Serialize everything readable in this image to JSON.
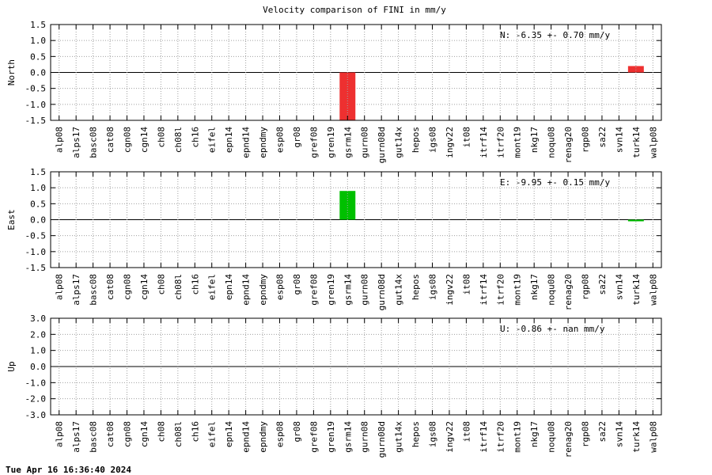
{
  "title": "Velocity comparison of FINI in mm/y",
  "footer": "Tue Apr 16 16:36:40 2024",
  "chart_data": [
    {
      "type": "bar",
      "ylabel": "North",
      "annotation": "N:  -6.35 +-  0.70 mm/y",
      "color": "#ee3030",
      "categories": [
        "alp08",
        "alps17",
        "basc08",
        "cat08",
        "cgn08",
        "cgn14",
        "ch08",
        "ch08l",
        "ch16",
        "eifel",
        "epn14",
        "epnd14",
        "epndmy",
        "esp08",
        "gr08",
        "gref08",
        "gren19",
        "gsrm14",
        "gurn08",
        "gurn08d",
        "gut14x",
        "hepos",
        "igs08",
        "ingv22",
        "it08",
        "itrf14",
        "itrf20",
        "mont19",
        "nkg17",
        "noqu08",
        "renag20",
        "rgp08",
        "sa22",
        "svn14",
        "turk14",
        "walp08"
      ],
      "values": [
        null,
        null,
        null,
        null,
        null,
        null,
        null,
        null,
        null,
        null,
        null,
        null,
        null,
        null,
        null,
        null,
        null,
        -1.6,
        null,
        null,
        null,
        null,
        null,
        null,
        null,
        null,
        null,
        null,
        null,
        null,
        null,
        null,
        null,
        null,
        0.2,
        null
      ],
      "ylim": [
        -1.5,
        1.5
      ],
      "yticks": [
        -1.5,
        {
          "value": -1,
          "label": "-1.0"
        },
        -0.5,
        {
          "value": 0,
          "label": "0.0"
        },
        0.5,
        {
          "value": 1,
          "label": "1.0"
        },
        1.5
      ],
      "grid": true
    },
    {
      "type": "bar",
      "ylabel": "East",
      "annotation": "E:  -9.95 +-  0.15 mm/y",
      "color": "#00c000",
      "categories": [
        "alp08",
        "alps17",
        "basc08",
        "cat08",
        "cgn08",
        "cgn14",
        "ch08",
        "ch08l",
        "ch16",
        "eifel",
        "epn14",
        "epnd14",
        "epndmy",
        "esp08",
        "gr08",
        "gref08",
        "gren19",
        "gsrm14",
        "gurn08",
        "gurn08d",
        "gut14x",
        "hepos",
        "igs08",
        "ingv22",
        "it08",
        "itrf14",
        "itrf20",
        "mont19",
        "nkg17",
        "noqu08",
        "renag20",
        "rgp08",
        "sa22",
        "svn14",
        "turk14",
        "walp08"
      ],
      "values": [
        null,
        null,
        null,
        null,
        null,
        null,
        null,
        null,
        null,
        null,
        null,
        null,
        null,
        null,
        null,
        null,
        null,
        0.9,
        null,
        null,
        null,
        null,
        null,
        null,
        null,
        null,
        null,
        null,
        null,
        null,
        null,
        null,
        null,
        null,
        -0.05,
        null
      ],
      "ylim": [
        -1.5,
        1.5
      ],
      "yticks": [
        -1.5,
        {
          "value": -1,
          "label": "-1.0"
        },
        -0.5,
        {
          "value": 0,
          "label": "0.0"
        },
        0.5,
        {
          "value": 1,
          "label": "1.0"
        },
        1.5
      ],
      "grid": true
    },
    {
      "type": "bar",
      "ylabel": "Up",
      "annotation": "U:  -0.86 +-   nan mm/y",
      "color": "#0000ee",
      "categories": [
        "alp08",
        "alps17",
        "basc08",
        "cat08",
        "cgn08",
        "cgn14",
        "ch08",
        "ch08l",
        "ch16",
        "eifel",
        "epn14",
        "epnd14",
        "epndmy",
        "esp08",
        "gr08",
        "gref08",
        "gren19",
        "gsrm14",
        "gurn08",
        "gurn08d",
        "gut14x",
        "hepos",
        "igs08",
        "ingv22",
        "it08",
        "itrf14",
        "itrf20",
        "mont19",
        "nkg17",
        "noqu08",
        "renag20",
        "rgp08",
        "sa22",
        "svn14",
        "turk14",
        "walp08"
      ],
      "values": [
        null,
        null,
        null,
        null,
        null,
        null,
        null,
        null,
        null,
        null,
        null,
        null,
        null,
        null,
        null,
        null,
        null,
        null,
        null,
        null,
        null,
        null,
        null,
        null,
        null,
        null,
        null,
        null,
        null,
        null,
        null,
        null,
        null,
        null,
        null,
        null
      ],
      "ylim": [
        -3,
        3
      ],
      "yticks": [
        {
          "value": -3,
          "label": "-3.0"
        },
        {
          "value": -2,
          "label": "-2.0"
        },
        {
          "value": -1,
          "label": "-1.0"
        },
        {
          "value": 0,
          "label": "0.0"
        },
        {
          "value": 1,
          "label": "1.0"
        },
        {
          "value": 2,
          "label": "2.0"
        },
        {
          "value": 3,
          "label": "3.0"
        }
      ],
      "grid": true
    }
  ]
}
